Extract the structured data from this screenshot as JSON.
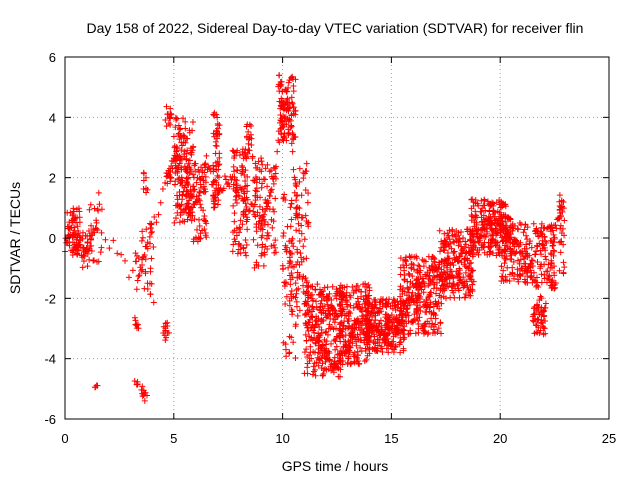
{
  "chart_data": {
    "type": "scatter",
    "title": "Day 158 of 2022, Sidereal Day-to-day VTEC variation (SDTVAR) for receiver flin",
    "xlabel": "GPS time / hours",
    "ylabel": "SDTVAR / TECUs",
    "xlim": [
      0,
      25
    ],
    "ylim": [
      -6,
      6
    ],
    "xticks": [
      0,
      5,
      10,
      15,
      20,
      25
    ],
    "xtick_labels": [
      "0",
      "5",
      "10",
      "15",
      "20",
      "25"
    ],
    "yticks": [
      -6,
      -4,
      -2,
      0,
      2,
      4,
      6
    ],
    "ytick_labels": [
      "-6",
      "-4",
      "-2",
      "0",
      "2",
      "4",
      "6"
    ],
    "grid": true,
    "marker": "+",
    "color": "#ff0000",
    "trend": {
      "x": [
        0.0,
        0.3,
        0.7,
        1.0,
        1.5,
        3.3,
        3.7,
        4.7,
        5.0,
        5.5,
        6.0,
        6.5,
        7.0,
        7.5,
        8.0,
        8.5,
        9.0,
        9.5,
        10.0,
        10.3,
        10.7,
        11.0,
        11.5,
        12.0,
        12.5,
        13.0,
        13.5,
        14.0,
        14.5,
        15.0,
        15.5,
        16.0,
        16.5,
        17.0,
        17.5,
        18.0,
        18.5,
        19.0,
        19.5,
        20.0,
        20.5,
        21.0,
        21.5,
        22.0,
        22.5,
        22.9
      ],
      "y": [
        -0.2,
        0.3,
        -0.3,
        -0.6,
        0.5,
        -1.5,
        -0.5,
        2.0,
        2.5,
        1.5,
        1.0,
        2.5,
        1.5,
        2.0,
        1.5,
        1.0,
        0.5,
        1.5,
        4.0,
        4.5,
        0.5,
        -2.0,
        -3.0,
        -4.0,
        -4.2,
        -3.5,
        -2.5,
        -3.0,
        -3.3,
        -3.2,
        -2.5,
        -2.0,
        -1.5,
        -1.0,
        -1.2,
        -0.8,
        -0.5,
        0.2,
        0.5,
        0.3,
        -0.2,
        -0.5,
        -1.0,
        -2.5,
        0.2,
        1.2
      ]
    },
    "clusters": [
      {
        "x": [
          0.1,
          0.7
        ],
        "y": [
          -0.6,
          1.0
        ],
        "n": 60
      },
      {
        "x": [
          0.8,
          1.1
        ],
        "y": [
          -1.0,
          0.3
        ],
        "n": 15
      },
      {
        "x": [
          1.1,
          1.7
        ],
        "y": [
          -0.9,
          1.5
        ],
        "n": 25
      },
      {
        "x": [
          1.3,
          1.5
        ],
        "y": [
          -5.0,
          -4.8
        ],
        "n": 4
      },
      {
        "x": [
          3.2,
          3.4
        ],
        "y": [
          -5.0,
          -4.6
        ],
        "n": 5
      },
      {
        "x": [
          3.2,
          3.4
        ],
        "y": [
          -3.0,
          -2.4
        ],
        "n": 8
      },
      {
        "x": [
          3.2,
          3.4
        ],
        "y": [
          -0.8,
          -0.4
        ],
        "n": 5
      },
      {
        "x": [
          3.5,
          3.8
        ],
        "y": [
          -5.4,
          -4.9
        ],
        "n": 10
      },
      {
        "x": [
          3.5,
          4.1
        ],
        "y": [
          -2.2,
          0.5
        ],
        "n": 30
      },
      {
        "x": [
          3.6,
          3.8
        ],
        "y": [
          1.5,
          2.2
        ],
        "n": 8
      },
      {
        "x": [
          4.5,
          4.8
        ],
        "y": [
          -3.5,
          -2.8
        ],
        "n": 14
      },
      {
        "x": [
          4.6,
          4.9
        ],
        "y": [
          1.8,
          2.2
        ],
        "n": 8
      },
      {
        "x": [
          4.6,
          4.9
        ],
        "y": [
          3.6,
          4.4
        ],
        "n": 14
      },
      {
        "x": [
          5.0,
          5.9
        ],
        "y": [
          0.5,
          4.0
        ],
        "n": 150
      },
      {
        "x": [
          5.9,
          6.5
        ],
        "y": [
          -0.2,
          2.5
        ],
        "n": 60
      },
      {
        "x": [
          6.8,
          7.1
        ],
        "y": [
          1.0,
          4.2
        ],
        "n": 60
      },
      {
        "x": [
          7.7,
          8.4
        ],
        "y": [
          -0.6,
          3.0
        ],
        "n": 90
      },
      {
        "x": [
          8.3,
          8.6
        ],
        "y": [
          2.6,
          3.8
        ],
        "n": 20
      },
      {
        "x": [
          8.6,
          9.3
        ],
        "y": [
          -1.0,
          2.8
        ],
        "n": 70
      },
      {
        "x": [
          9.3,
          9.7
        ],
        "y": [
          -0.5,
          2.5
        ],
        "n": 30
      },
      {
        "x": [
          9.8,
          10.6
        ],
        "y": [
          3.2,
          5.4
        ],
        "n": 100
      },
      {
        "x": [
          10.0,
          10.7
        ],
        "y": [
          -4.0,
          1.5
        ],
        "n": 80
      },
      {
        "x": [
          10.6,
          11.2
        ],
        "y": [
          -2.5,
          2.7
        ],
        "n": 50
      },
      {
        "x": [
          11.0,
          12.7
        ],
        "y": [
          -4.6,
          -1.5
        ],
        "n": 250
      },
      {
        "x": [
          12.6,
          14.0
        ],
        "y": [
          -4.2,
          -1.5
        ],
        "n": 220
      },
      {
        "x": [
          13.8,
          15.6
        ],
        "y": [
          -3.8,
          -2.0
        ],
        "n": 250
      },
      {
        "x": [
          15.4,
          17.3
        ],
        "y": [
          -3.2,
          -0.6
        ],
        "n": 250
      },
      {
        "x": [
          17.2,
          18.8
        ],
        "y": [
          -2.0,
          0.3
        ],
        "n": 200
      },
      {
        "x": [
          18.6,
          20.5
        ],
        "y": [
          -0.6,
          1.3
        ],
        "n": 230
      },
      {
        "x": [
          20.0,
          22.5
        ],
        "y": [
          -1.5,
          0.5
        ],
        "n": 200
      },
      {
        "x": [
          21.5,
          22.1
        ],
        "y": [
          -3.2,
          -2.2
        ],
        "n": 45
      },
      {
        "x": [
          22.3,
          22.6
        ],
        "y": [
          -1.7,
          -1.3
        ],
        "n": 10
      },
      {
        "x": [
          22.7,
          22.95
        ],
        "y": [
          -1.2,
          1.5
        ],
        "n": 30
      }
    ]
  }
}
